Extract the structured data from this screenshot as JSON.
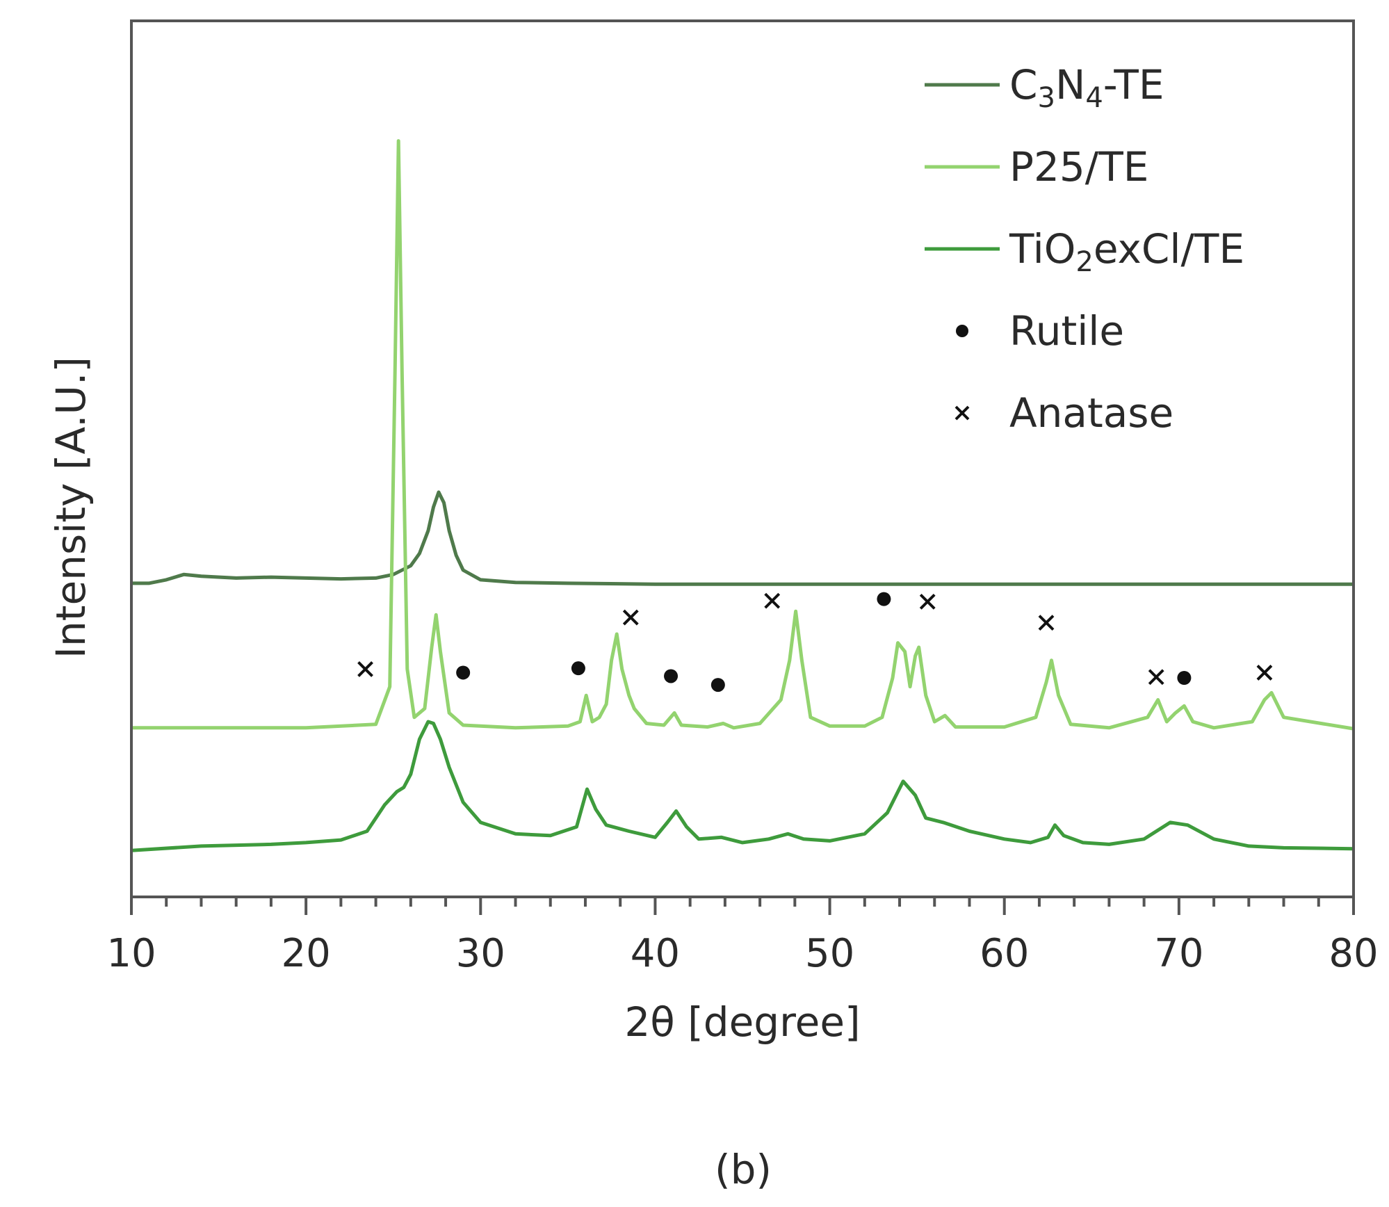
{
  "chart_data": {
    "type": "line",
    "title": "",
    "xlabel": "2θ [degree]",
    "ylabel": "Intensity [A.U.]",
    "xlim": [
      10,
      80
    ],
    "ylim": [
      0,
      1
    ],
    "y_ticks_shown": false,
    "x_ticks": [
      10,
      20,
      30,
      40,
      50,
      60,
      70,
      80
    ],
    "grid": false,
    "legend_position": "top-right",
    "panel_label": "(b)",
    "series": [
      {
        "name": "C3N4-TE",
        "legend_parts": [
          [
            "C",
            ""
          ],
          [
            "3",
            "sub"
          ],
          [
            "N",
            ""
          ],
          [
            "4",
            "sub"
          ],
          [
            "-TE",
            ""
          ]
        ],
        "color": "#4f7a4b",
        "x": [
          10,
          11,
          12,
          13,
          14,
          16,
          18,
          20,
          22,
          24,
          25,
          26,
          26.5,
          27,
          27.3,
          27.6,
          27.9,
          28.2,
          28.6,
          29,
          30,
          32,
          35,
          40,
          45,
          50,
          55,
          60,
          65,
          70,
          75,
          80
        ],
        "y": [
          0.358,
          0.358,
          0.362,
          0.368,
          0.366,
          0.364,
          0.365,
          0.364,
          0.363,
          0.364,
          0.368,
          0.378,
          0.392,
          0.418,
          0.445,
          0.462,
          0.45,
          0.418,
          0.39,
          0.373,
          0.362,
          0.359,
          0.358,
          0.357,
          0.357,
          0.357,
          0.357,
          0.357,
          0.357,
          0.357,
          0.357,
          0.357
        ]
      },
      {
        "name": "P25/TE",
        "legend_parts": [
          [
            "P25/TE",
            ""
          ]
        ],
        "color": "#93d36f",
        "x": [
          10,
          20,
          24,
          24.8,
          25.1,
          25.3,
          25.5,
          25.8,
          26.2,
          26.8,
          27.2,
          27.45,
          27.7,
          28.2,
          29,
          32,
          35,
          35.7,
          36.05,
          36.4,
          36.8,
          37.2,
          37.5,
          37.8,
          38.1,
          38.5,
          38.8,
          39.5,
          40.5,
          41.1,
          41.5,
          43,
          43.9,
          44.5,
          46,
          47.2,
          47.7,
          48.05,
          48.4,
          48.9,
          50,
          52,
          53,
          53.6,
          53.9,
          54.3,
          54.6,
          54.9,
          55.1,
          55.5,
          56,
          56.6,
          57.2,
          60,
          61.8,
          62.4,
          62.7,
          63.1,
          63.8,
          66,
          68.2,
          68.8,
          69.3,
          69.8,
          70.3,
          70.8,
          72,
          74.2,
          74.9,
          75.3,
          76,
          80
        ],
        "y": [
          0.193,
          0.193,
          0.197,
          0.24,
          0.6,
          0.863,
          0.6,
          0.26,
          0.205,
          0.215,
          0.285,
          0.322,
          0.28,
          0.21,
          0.196,
          0.193,
          0.195,
          0.2,
          0.23,
          0.2,
          0.205,
          0.22,
          0.27,
          0.3,
          0.26,
          0.23,
          0.215,
          0.198,
          0.196,
          0.21,
          0.196,
          0.194,
          0.198,
          0.193,
          0.198,
          0.225,
          0.27,
          0.326,
          0.27,
          0.205,
          0.195,
          0.195,
          0.205,
          0.25,
          0.29,
          0.28,
          0.24,
          0.275,
          0.285,
          0.23,
          0.2,
          0.207,
          0.194,
          0.194,
          0.205,
          0.245,
          0.27,
          0.23,
          0.197,
          0.193,
          0.205,
          0.225,
          0.2,
          0.21,
          0.218,
          0.2,
          0.193,
          0.2,
          0.225,
          0.233,
          0.205,
          0.192
        ]
      },
      {
        "name": "TiO2exCl/TE",
        "legend_parts": [
          [
            "TiO",
            ""
          ],
          [
            "2",
            "sub"
          ],
          [
            "exCl/TE",
            ""
          ]
        ],
        "color": "#3e9b3c",
        "x": [
          10,
          14,
          18,
          20,
          22,
          23.5,
          24.5,
          25.2,
          25.6,
          26,
          26.5,
          27,
          27.3,
          27.7,
          28.2,
          29,
          30,
          32,
          34,
          35.5,
          36.1,
          36.6,
          37.2,
          38.5,
          40,
          40.7,
          41.2,
          41.8,
          42.5,
          43.8,
          45,
          46.5,
          47.6,
          48.5,
          50,
          52,
          53.3,
          54.2,
          54.9,
          55.5,
          56.5,
          58,
          60,
          61.5,
          62.5,
          62.9,
          63.4,
          64.5,
          66,
          68,
          69.5,
          70.5,
          72,
          74,
          76,
          80
        ],
        "y": [
          0.053,
          0.058,
          0.06,
          0.062,
          0.065,
          0.075,
          0.105,
          0.12,
          0.125,
          0.14,
          0.18,
          0.2,
          0.198,
          0.18,
          0.148,
          0.108,
          0.085,
          0.072,
          0.07,
          0.08,
          0.123,
          0.1,
          0.082,
          0.075,
          0.068,
          0.085,
          0.098,
          0.08,
          0.066,
          0.068,
          0.062,
          0.066,
          0.072,
          0.066,
          0.064,
          0.072,
          0.096,
          0.132,
          0.116,
          0.09,
          0.085,
          0.075,
          0.066,
          0.062,
          0.068,
          0.082,
          0.07,
          0.062,
          0.06,
          0.066,
          0.085,
          0.082,
          0.066,
          0.058,
          0.056,
          0.055
        ]
      }
    ],
    "markers": {
      "Rutile": {
        "symbol": "dot",
        "points": [
          [
            29.0,
            0.256
          ],
          [
            35.6,
            0.261
          ],
          [
            40.9,
            0.252
          ],
          [
            43.6,
            0.242
          ],
          [
            53.1,
            0.34
          ],
          [
            70.3,
            0.25
          ]
        ]
      },
      "Anatase": {
        "symbol": "x",
        "points": [
          [
            23.4,
            0.26
          ],
          [
            38.6,
            0.319
          ],
          [
            46.7,
            0.338
          ],
          [
            55.6,
            0.337
          ],
          [
            62.4,
            0.313
          ],
          [
            68.7,
            0.251
          ],
          [
            74.9,
            0.256
          ]
        ]
      }
    },
    "legend": [
      {
        "label": "C3N4-TE",
        "kind": "line",
        "series": 0
      },
      {
        "label": "P25/TE",
        "kind": "line",
        "series": 1
      },
      {
        "label": "TiO2exCl/TE",
        "kind": "line",
        "series": 2
      },
      {
        "label": "Rutile",
        "kind": "dot"
      },
      {
        "label": "Anatase",
        "kind": "x"
      }
    ]
  }
}
